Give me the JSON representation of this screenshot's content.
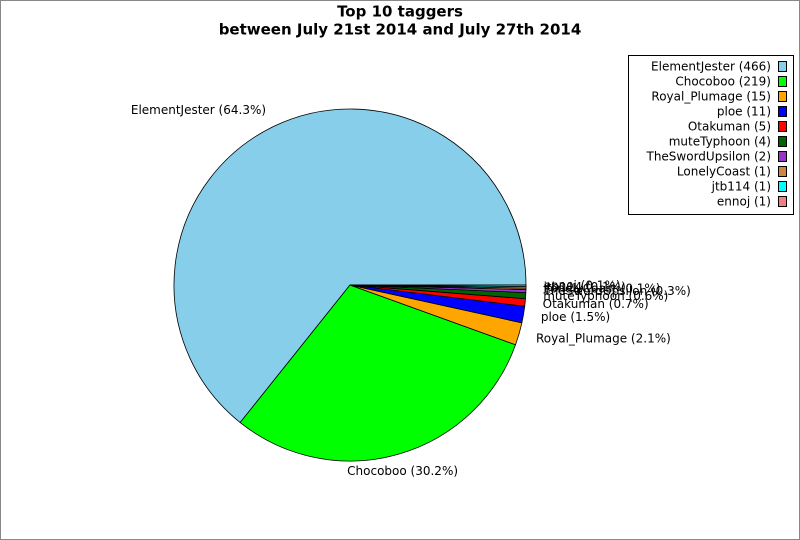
{
  "chart_data": {
    "type": "pie",
    "title": "Top 10 taggers",
    "subtitle": "between July 21st 2014 and July 27th 2014",
    "values": [
      466,
      219,
      15,
      11,
      5,
      4,
      2,
      1,
      1,
      1
    ],
    "legend_labels": [
      "ElementJester (466)",
      "Chocoboo (219)",
      "Royal_Plumage (15)",
      "ploe (11)",
      "Otakuman (5)",
      "muteTyphoon (4)",
      "TheSwordUpsilon (2)",
      "LonelyCoast (1)",
      "jtb114 (1)",
      "ennoj (1)"
    ],
    "value_labels": [
      "ElementJester (64.3%)",
      "Chocoboo (30.2%)",
      "Royal_Plumage (2.1%)",
      "ploe (1.5%)",
      "Otakuman (0.7%)",
      "muteTyphoon (0.6%)",
      "TheSwordUpsilon (0.3%)",
      "LonelyCoast (0.1%)",
      "jtb114 (0.1%)",
      "ennoj (0.1%)"
    ],
    "colors": [
      "#87ceeb",
      "#00ff00",
      "#ffa500",
      "#0000ff",
      "#ff0000",
      "#006400",
      "#9932cc",
      "#cd853f",
      "#00ffff",
      "#f08080"
    ],
    "legend": "upper right"
  }
}
